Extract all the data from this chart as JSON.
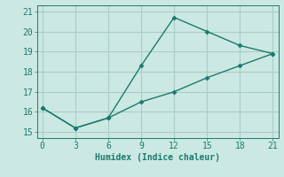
{
  "line1_x": [
    0,
    3,
    6,
    9,
    12,
    15,
    18,
    21
  ],
  "line1_y": [
    16.2,
    15.2,
    15.7,
    18.3,
    20.7,
    20.0,
    19.3,
    18.9
  ],
  "line2_x": [
    0,
    3,
    6,
    9,
    12,
    15,
    18,
    21
  ],
  "line2_y": [
    16.2,
    15.2,
    15.7,
    16.5,
    17.0,
    17.7,
    18.3,
    18.9
  ],
  "line_color": "#1a7a6e",
  "bg_color": "#cce8e2",
  "grid_color": "#aaccC6",
  "xlabel": "Humidex (Indice chaleur)",
  "xlim": [
    -0.5,
    21.5
  ],
  "ylim": [
    14.7,
    21.3
  ],
  "xticks": [
    0,
    3,
    6,
    9,
    12,
    15,
    18,
    21
  ],
  "yticks": [
    15,
    16,
    17,
    18,
    19,
    20,
    21
  ],
  "marker": "D",
  "markersize": 2.5,
  "linewidth": 1.0
}
